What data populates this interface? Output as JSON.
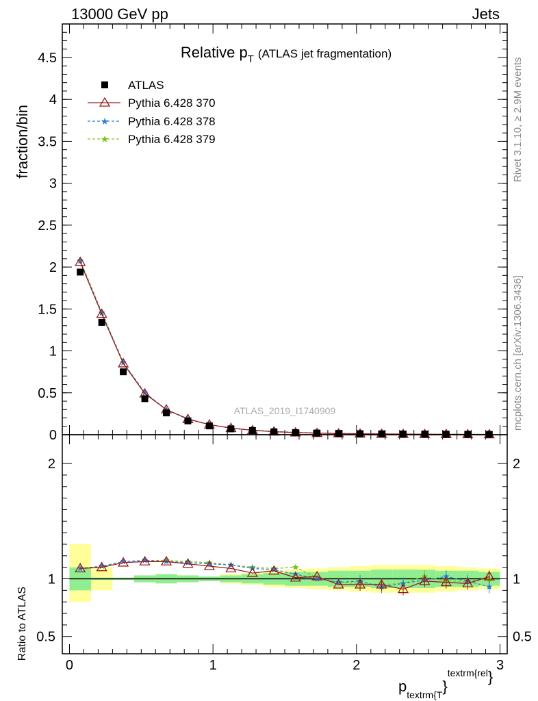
{
  "header": {
    "left": "13000 GeV pp",
    "right": "Jets"
  },
  "title": {
    "main": "Relative p",
    "sub": "T",
    "rest": "(ATLAS jet fragmentation)"
  },
  "side_text": {
    "rivet": "Rivet 3.1.10, ≥ 2.9M events",
    "mcplots": "mcplots.cern.ch [arXiv:1306.3436]"
  },
  "watermark": "ATLAS_2019_I1740909",
  "legend": {
    "atlas": "ATLAS",
    "s370": "Pythia 6.428 370",
    "s378": "Pythia 6.428 378",
    "s379": "Pythia 6.428 379"
  },
  "colors": {
    "data": "#000000",
    "s370": "#9a1a1a",
    "s378": "#2a7fd4",
    "s379": "#7cc21c",
    "band_inner": "#90ee90",
    "band_outer": "#ffff99"
  },
  "chart_data": [
    {
      "type": "scatter",
      "ylabel": "fraction/bin",
      "ylim": [
        0,
        4.9
      ],
      "xlim": [
        -0.05,
        3.05
      ],
      "yticks": [
        "0",
        "0.5",
        "1",
        "1.5",
        "2",
        "2.5",
        "3",
        "3.5",
        "4",
        "4.5"
      ],
      "x": [
        0.075,
        0.225,
        0.375,
        0.525,
        0.675,
        0.825,
        0.975,
        1.125,
        1.275,
        1.425,
        1.575,
        1.725,
        1.875,
        2.025,
        2.175,
        2.325,
        2.475,
        2.625,
        2.775,
        2.925
      ],
      "series": [
        {
          "name": "ATLAS",
          "values": [
            1.94,
            1.34,
            0.75,
            0.43,
            0.26,
            0.165,
            0.105,
            0.07,
            0.05,
            0.035,
            0.025,
            0.02,
            0.015,
            0.012,
            0.01,
            0.008,
            0.007,
            0.006,
            0.005,
            0.004
          ]
        },
        {
          "name": "Pythia 6.428 370",
          "values": [
            2.06,
            1.44,
            0.85,
            0.49,
            0.3,
            0.185,
            0.12,
            0.078,
            0.052,
            0.036,
            0.025,
            0.019,
            0.014,
            0.011,
            0.009,
            0.007,
            0.006,
            0.005,
            0.004,
            0.003
          ]
        },
        {
          "name": "Pythia 6.428 378",
          "values": [
            2.07,
            1.45,
            0.86,
            0.5,
            0.3,
            0.19,
            0.12,
            0.08,
            0.054,
            0.038,
            0.027,
            0.02,
            0.015,
            0.012,
            0.009,
            0.007,
            0.006,
            0.005,
            0.004,
            0.003
          ]
        },
        {
          "name": "Pythia 6.428 379",
          "values": [
            2.08,
            1.46,
            0.86,
            0.5,
            0.3,
            0.19,
            0.12,
            0.08,
            0.055,
            0.038,
            0.028,
            0.02,
            0.015,
            0.012,
            0.009,
            0.007,
            0.006,
            0.005,
            0.004,
            0.003
          ]
        }
      ]
    },
    {
      "type": "line",
      "ylabel": "Ratio to ATLAS",
      "xlabel": "p_textrm{T}^textrm{rel}",
      "ylim": [
        0.35,
        2.25
      ],
      "xlim": [
        -0.05,
        3.05
      ],
      "yticks": [
        "0.5",
        "1",
        "2"
      ],
      "xticks": [
        "0",
        "1",
        "2",
        "3"
      ],
      "x": [
        0.075,
        0.225,
        0.375,
        0.525,
        0.675,
        0.825,
        0.975,
        1.125,
        1.275,
        1.425,
        1.575,
        1.725,
        1.875,
        2.025,
        2.175,
        2.325,
        2.475,
        2.625,
        2.775,
        2.925
      ],
      "bin_edges": [
        0,
        0.15,
        0.3,
        0.45,
        0.6,
        0.75,
        0.9,
        1.05,
        1.2,
        1.35,
        1.5,
        1.65,
        1.8,
        1.95,
        2.1,
        2.25,
        2.4,
        2.55,
        2.7,
        2.85,
        3.0
      ],
      "band_inner": [
        [
          0.9,
          1.1
        ],
        [
          0.99,
          1.01
        ],
        [
          0.99,
          1.01
        ],
        [
          0.97,
          1.03
        ],
        [
          0.96,
          1.04
        ],
        [
          0.97,
          1.03
        ],
        [
          0.98,
          1.02
        ],
        [
          0.97,
          1.03
        ],
        [
          0.96,
          1.04
        ],
        [
          0.95,
          1.05
        ],
        [
          0.94,
          1.06
        ],
        [
          0.94,
          1.06
        ],
        [
          0.93,
          1.07
        ],
        [
          0.93,
          1.07
        ],
        [
          0.92,
          1.08
        ],
        [
          0.92,
          1.08
        ],
        [
          0.92,
          1.08
        ],
        [
          0.93,
          1.07
        ],
        [
          0.93,
          1.07
        ],
        [
          0.94,
          1.06
        ]
      ],
      "band_outer": [
        [
          0.8,
          1.3
        ],
        [
          0.9,
          1.1
        ],
        [
          0.99,
          1.01
        ],
        [
          0.97,
          1.03
        ],
        [
          0.96,
          1.04
        ],
        [
          0.97,
          1.03
        ],
        [
          0.98,
          1.02
        ],
        [
          0.96,
          1.04
        ],
        [
          0.95,
          1.05
        ],
        [
          0.93,
          1.07
        ],
        [
          0.92,
          1.08
        ],
        [
          0.91,
          1.09
        ],
        [
          0.9,
          1.1
        ],
        [
          0.89,
          1.11
        ],
        [
          0.88,
          1.12
        ],
        [
          0.88,
          1.12
        ],
        [
          0.88,
          1.12
        ],
        [
          0.89,
          1.11
        ],
        [
          0.9,
          1.1
        ],
        [
          0.91,
          1.09
        ]
      ],
      "series": [
        {
          "name": "Pythia 6.428 370",
          "values": [
            1.09,
            1.1,
            1.14,
            1.15,
            1.15,
            1.13,
            1.11,
            1.09,
            1.05,
            1.07,
            1.01,
            1.02,
            0.95,
            0.95,
            0.95,
            0.91,
            0.98,
            0.97,
            0.96,
            1.02
          ]
        },
        {
          "name": "Pythia 6.428 378",
          "values": [
            1.09,
            1.11,
            1.15,
            1.16,
            1.15,
            1.14,
            1.13,
            1.12,
            1.09,
            1.08,
            1.04,
            1.0,
            0.97,
            0.98,
            0.93,
            0.96,
            0.99,
            1.02,
            0.98,
            0.93
          ]
        },
        {
          "name": "Pythia 6.428 379",
          "values": [
            1.09,
            1.11,
            1.15,
            1.16,
            1.16,
            1.15,
            1.14,
            1.12,
            1.1,
            1.09,
            1.1,
            1.01,
            0.97,
            0.96,
            0.95,
            0.96,
            1.02,
            0.98,
            0.98,
            1.0
          ]
        }
      ]
    }
  ]
}
